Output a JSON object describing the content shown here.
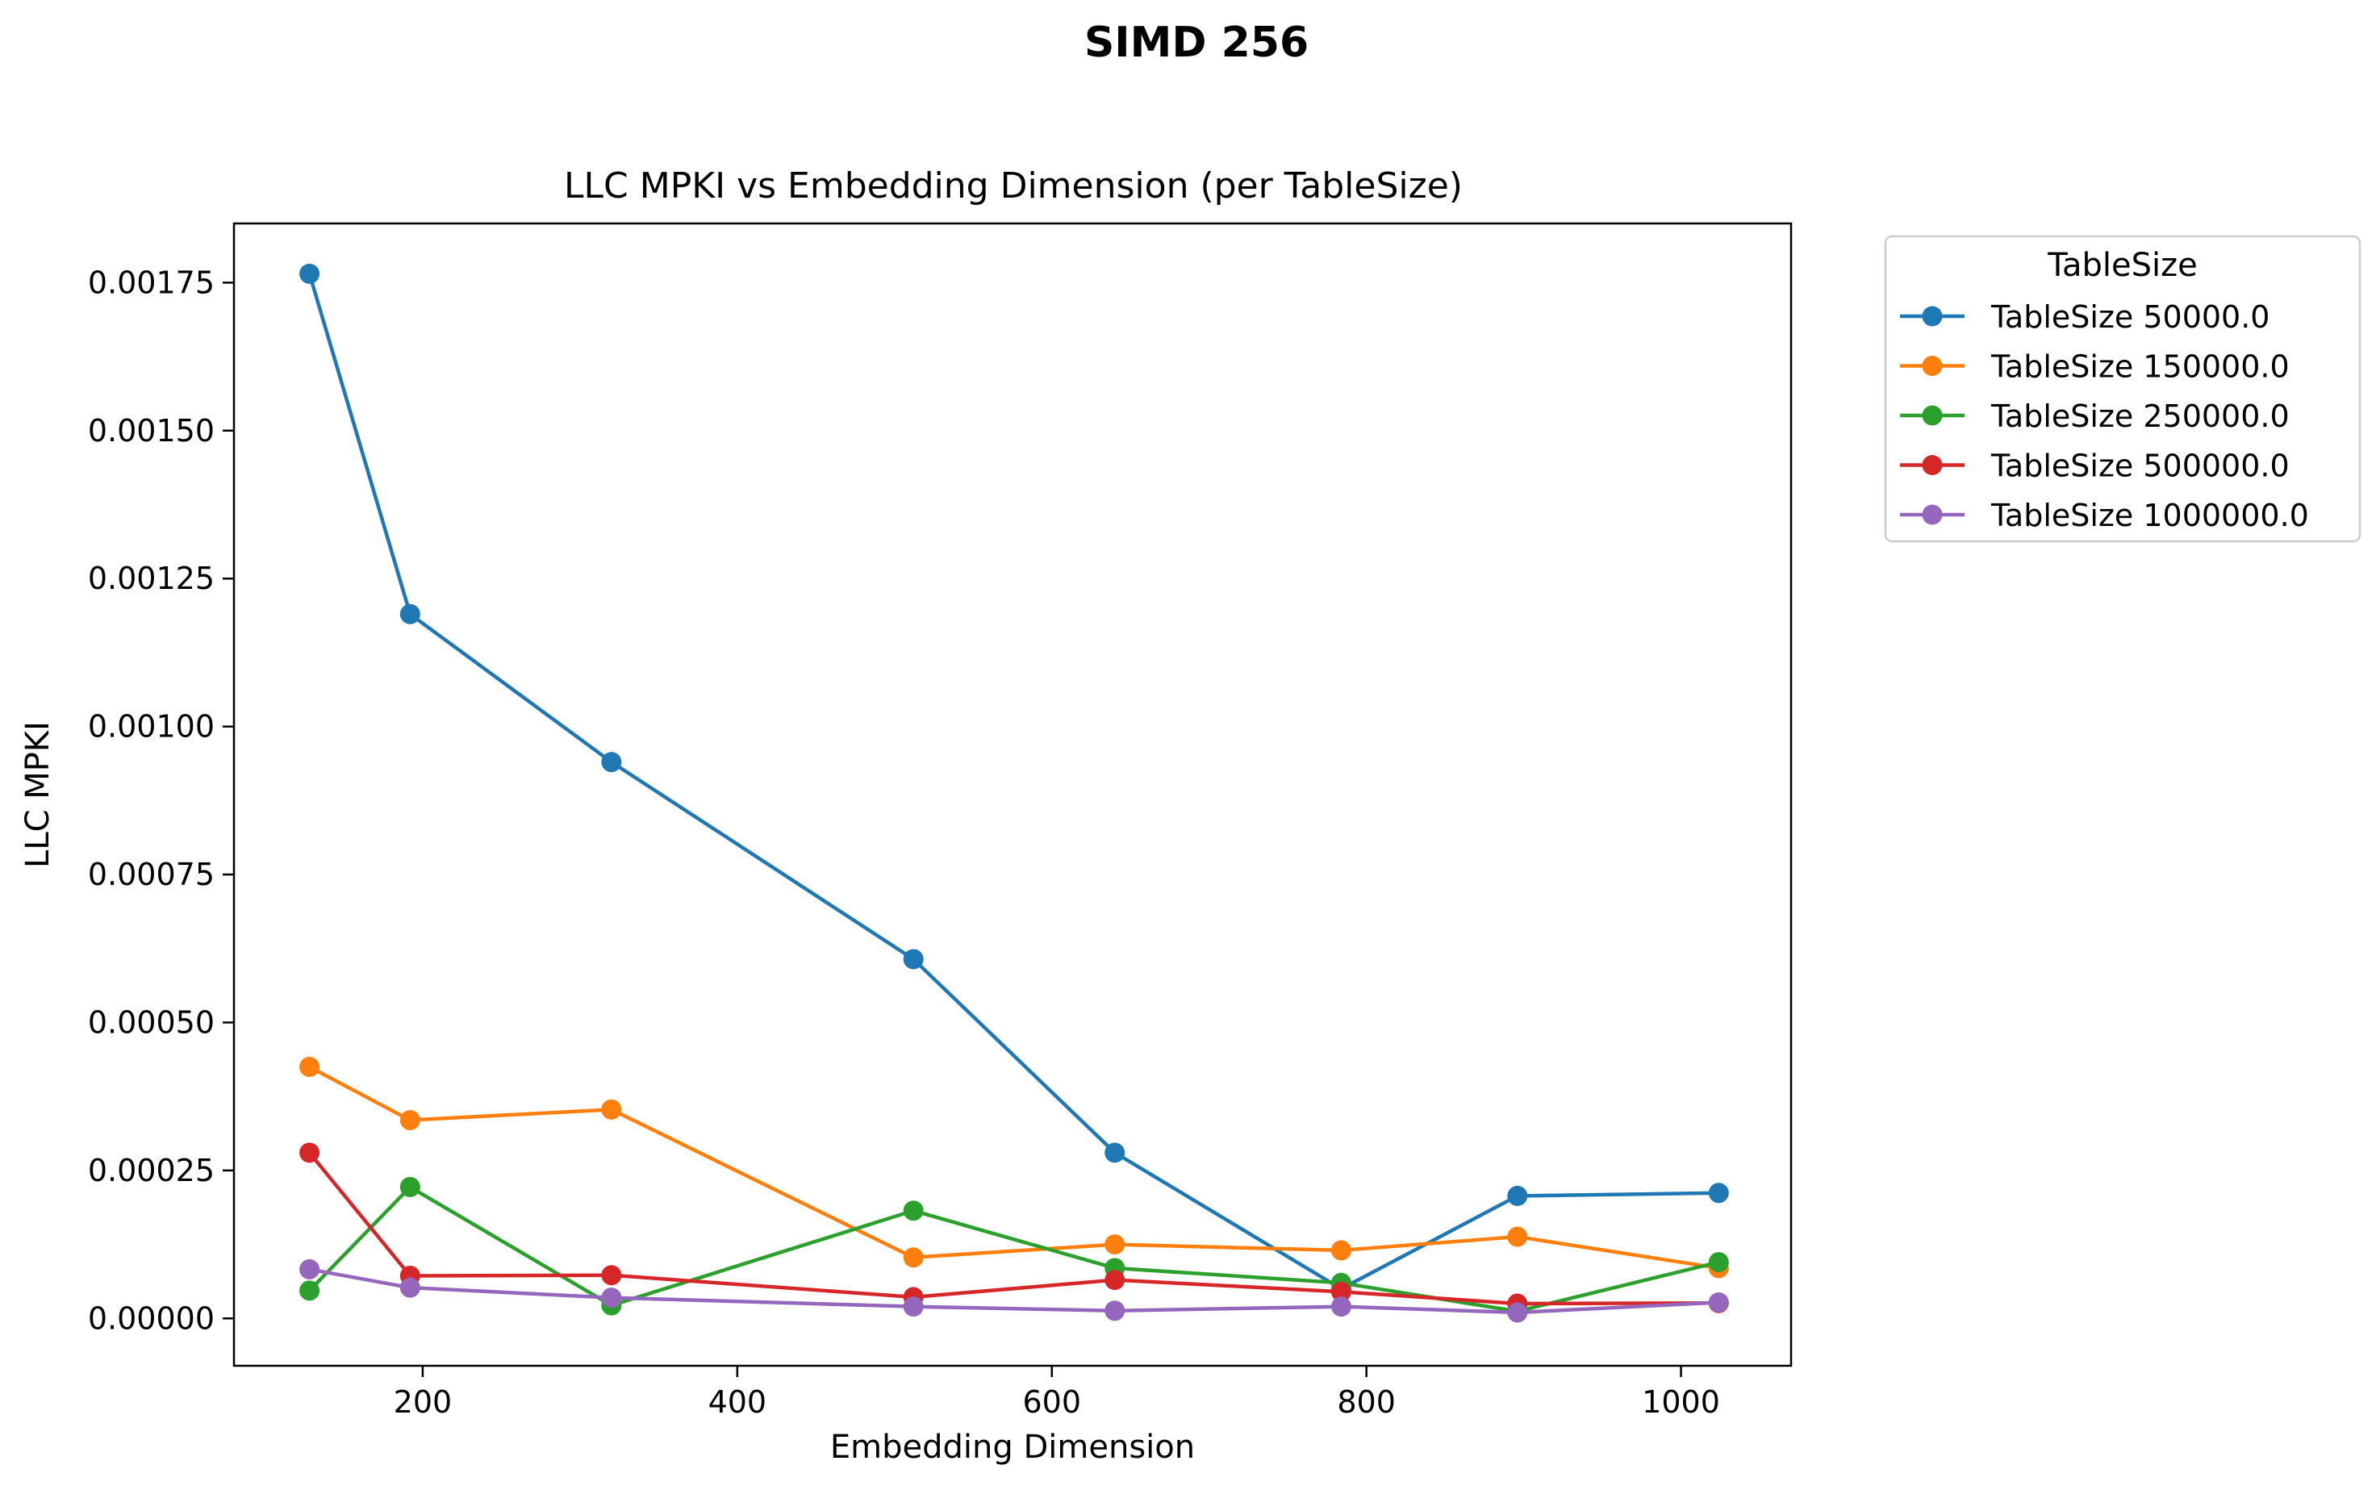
{
  "figure": {
    "suptitle": "SIMD 256"
  },
  "chart_data": {
    "type": "line",
    "title": "LLC MPKI vs Embedding Dimension (per TableSize)",
    "xlabel": "Embedding Dimension",
    "ylabel": "LLC MPKI",
    "xlim": [
      80,
      1070
    ],
    "ylim": [
      -8e-05,
      0.00185
    ],
    "xticks": [
      200,
      400,
      600,
      800,
      1000
    ],
    "xtick_labels": [
      "200",
      "400",
      "600",
      "800",
      "1000"
    ],
    "yticks": [
      0.0,
      0.00025,
      0.0005,
      0.00075,
      0.001,
      0.00125,
      0.0015,
      0.00175
    ],
    "ytick_labels": [
      "0.00000",
      "0.00025",
      "0.00050",
      "0.00075",
      "0.00100",
      "0.00125",
      "0.00150",
      "0.00175"
    ],
    "grid": false,
    "legend": {
      "title": "TableSize",
      "placement": "outside upper right"
    },
    "x": [
      128,
      192,
      320,
      512,
      640,
      784,
      896,
      1024
    ],
    "series": [
      {
        "name": "TableSize 50000.0",
        "color": "#1f77b4",
        "values": [
          0.001765,
          0.00119,
          0.00094,
          0.000607,
          0.00028,
          5e-05,
          0.000207,
          0.000212
        ]
      },
      {
        "name": "TableSize 150000.0",
        "color": "#ff7f0e",
        "values": [
          0.000425,
          0.000335,
          0.000353,
          0.000103,
          0.000125,
          0.000115,
          0.000138,
          8.5e-05
        ]
      },
      {
        "name": "TableSize 250000.0",
        "color": "#2ca02c",
        "values": [
          4.7e-05,
          0.000222,
          2.2e-05,
          0.000182,
          8.5e-05,
          6e-05,
          1.2e-05,
          9.5e-05
        ]
      },
      {
        "name": "TableSize 500000.0",
        "color": "#d62728",
        "values": [
          0.00028,
          7.2e-05,
          7.3e-05,
          3.6e-05,
          6.5e-05,
          4.5e-05,
          2.5e-05,
          2.6e-05
        ]
      },
      {
        "name": "TableSize 1000000.0",
        "color": "#9467bd",
        "values": [
          8.3e-05,
          5.2e-05,
          3.5e-05,
          2e-05,
          1.3e-05,
          2e-05,
          1e-05,
          2.7e-05
        ]
      }
    ]
  }
}
